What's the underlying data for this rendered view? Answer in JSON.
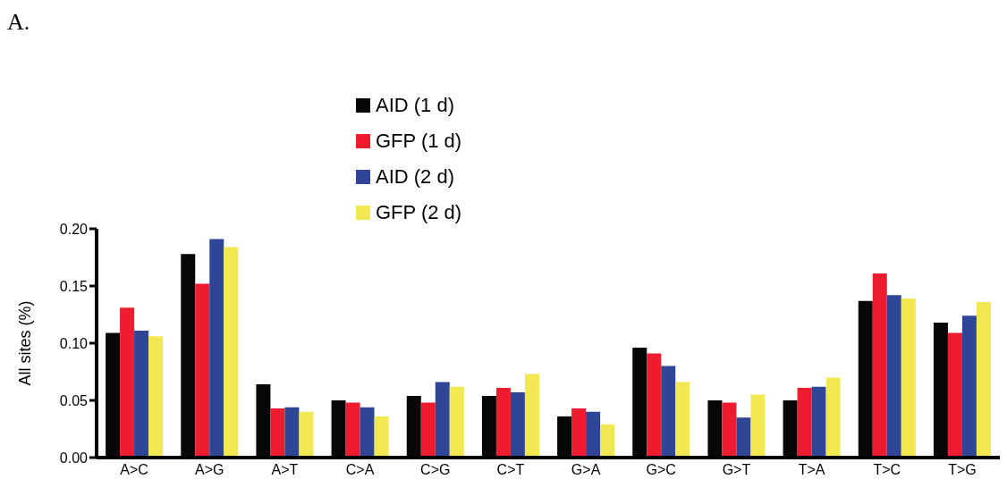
{
  "chart_data": {
    "type": "bar",
    "ylabel": "All sites  (%)",
    "annotations": [
      "A."
    ],
    "categories": [
      "A>C",
      "A>G",
      "A>T",
      "C>A",
      "C>G",
      "C>T",
      "G>A",
      "G>C",
      "G>T",
      "T>A",
      "T>C",
      "T>G"
    ],
    "series": [
      {
        "name": "AID (1 d)",
        "color": "#070707",
        "values": [
          0.109,
          0.178,
          0.064,
          0.05,
          0.054,
          0.054,
          0.036,
          0.096,
          0.05,
          0.05,
          0.137,
          0.118
        ]
      },
      {
        "name": "GFP (1 d)",
        "color": "#ee1c2e",
        "values": [
          0.131,
          0.152,
          0.043,
          0.048,
          0.048,
          0.061,
          0.043,
          0.091,
          0.048,
          0.061,
          0.161,
          0.109
        ]
      },
      {
        "name": "AID (2 d)",
        "color": "#2f4596",
        "values": [
          0.111,
          0.191,
          0.044,
          0.044,
          0.066,
          0.057,
          0.04,
          0.08,
          0.035,
          0.062,
          0.142,
          0.124
        ]
      },
      {
        "name": "GFP (2 d)",
        "color": "#f2e852",
        "values": [
          0.106,
          0.184,
          0.04,
          0.036,
          0.062,
          0.073,
          0.029,
          0.066,
          0.055,
          0.07,
          0.139,
          0.136
        ]
      }
    ],
    "ylim": [
      0,
      0.2
    ],
    "yticks": [
      {
        "value": 0,
        "label": "0.00"
      },
      {
        "value": 0.05,
        "label": "0.05"
      },
      {
        "value": 0.1,
        "label": "0.10"
      },
      {
        "value": 0.15,
        "label": "0.15"
      },
      {
        "value": 0.2,
        "label": "0.20"
      }
    ],
    "legend": "top",
    "grid": false
  }
}
